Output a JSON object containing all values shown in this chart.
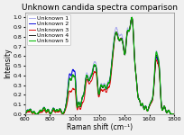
{
  "title": "Unknown candida spectra comparison",
  "xlabel": "Raman shift (cm⁻¹)",
  "ylabel": "Intensity",
  "xlim": [
    600,
    1800
  ],
  "ylim": [
    0,
    1.05
  ],
  "yticks": [
    0.0,
    0.1,
    0.2,
    0.3,
    0.4,
    0.5,
    0.6,
    0.7,
    0.8,
    0.9,
    1.0
  ],
  "xticks": [
    600,
    800,
    1000,
    1200,
    1400,
    1600,
    1800
  ],
  "series_labels": [
    "Unknown 1",
    "Unknown 2",
    "Unknown 3",
    "Unknown 4",
    "Unknown 5"
  ],
  "series_colors": [
    "#aaaaee",
    "#0000dd",
    "#dd0000",
    "#111111",
    "#00bb00"
  ],
  "series_linewidths": [
    0.7,
    0.7,
    0.7,
    0.7,
    0.8
  ],
  "background_color": "#f0f0f0",
  "title_fontsize": 6.5,
  "axis_label_fontsize": 5.5,
  "tick_fontsize": 4.5,
  "legend_fontsize": 4.5
}
